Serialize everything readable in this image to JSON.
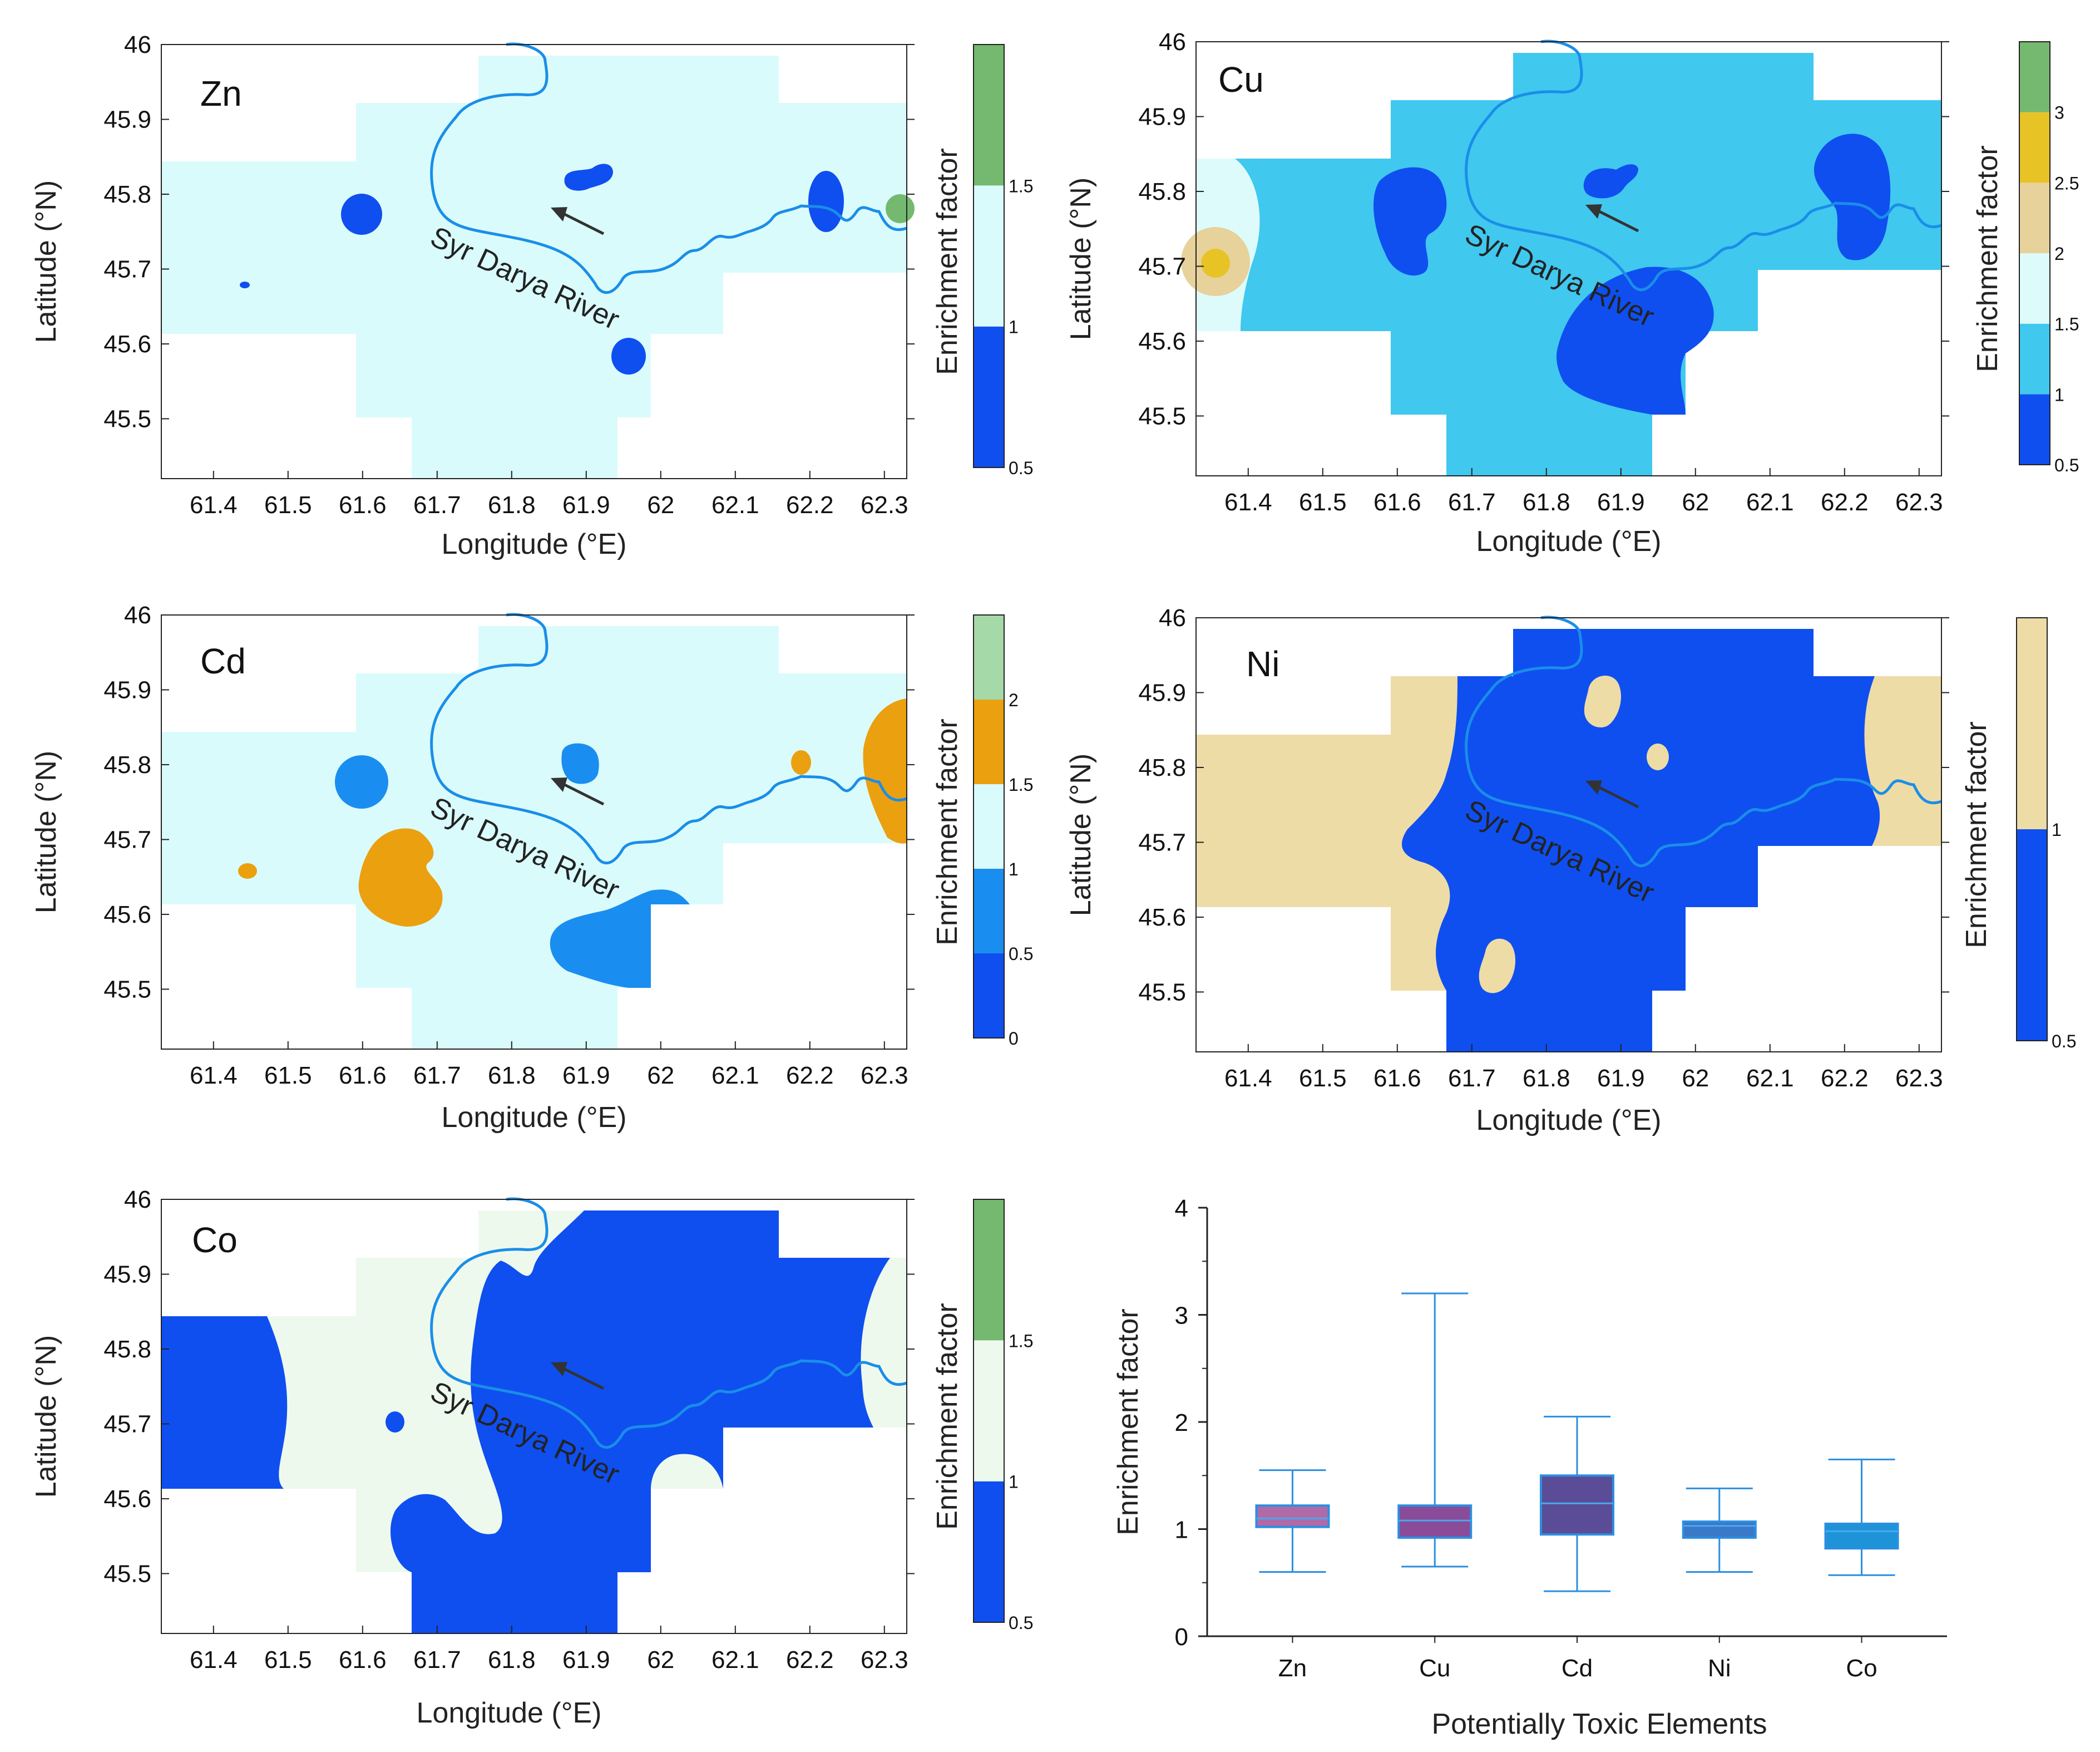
{
  "maps": [
    {
      "element": "Zn",
      "xlabel": "Longitude (°E)",
      "ylabel": "Latitude (°N)",
      "xticks": [
        "61.4",
        "61.5",
        "61.6",
        "61.7",
        "61.8",
        "61.9",
        "62",
        "62.1",
        "62.2",
        "62.3"
      ],
      "yticks": [
        "46",
        "45.9",
        "45.8",
        "45.7",
        "45.6",
        "45.5"
      ],
      "river_label": "Syr Darya River",
      "background_color": "#dafbfb",
      "colorbar": {
        "label": "Enrichment factor",
        "segments": [
          {
            "color": "#0f4ff0",
            "from": 0.5,
            "to": 1
          },
          {
            "color": "#dafbfb",
            "from": 1,
            "to": 1.5
          },
          {
            "color": "#74b96f",
            "from": 1.5,
            "to": 2
          }
        ],
        "ticks": [
          "0.5",
          "1",
          "1.5"
        ]
      }
    },
    {
      "element": "Cu",
      "xlabel": "Longitude (°E)",
      "ylabel": "Latitude (°N)",
      "xticks": [
        "61.4",
        "61.5",
        "61.6",
        "61.7",
        "61.8",
        "61.9",
        "62",
        "62.1",
        "62.2",
        "62.3"
      ],
      "yticks": [
        "46",
        "45.9",
        "45.8",
        "45.7",
        "45.6",
        "45.5"
      ],
      "river_label": "Syr Darya River",
      "background_color": "#40c8ef",
      "colorbar": {
        "label": "Enrichment factor",
        "segments": [
          {
            "color": "#0f4ff0",
            "from": 0.5,
            "to": 1
          },
          {
            "color": "#40c8ef",
            "from": 1,
            "to": 1.5
          },
          {
            "color": "#defbfb",
            "from": 1.5,
            "to": 2
          },
          {
            "color": "#e6d29a",
            "from": 2,
            "to": 2.5
          },
          {
            "color": "#e8c326",
            "from": 2.5,
            "to": 3
          },
          {
            "color": "#74b96f",
            "from": 3,
            "to": 3.5
          }
        ],
        "ticks": [
          "0.5",
          "1",
          "1.5",
          "2",
          "2.5",
          "3"
        ]
      }
    },
    {
      "element": "Cd",
      "xlabel": "Longitude (°E)",
      "ylabel": "Latitude (°N)",
      "xticks": [
        "61.4",
        "61.5",
        "61.6",
        "61.7",
        "61.8",
        "61.9",
        "62",
        "62.1",
        "62.2",
        "62.3"
      ],
      "yticks": [
        "46",
        "45.9",
        "45.8",
        "45.7",
        "45.6",
        "45.5"
      ],
      "river_label": "Syr Darya River",
      "background_color": "#dafbfb",
      "colorbar": {
        "label": "Enrichment factor",
        "segments": [
          {
            "color": "#0f4ff0",
            "from": 0,
            "to": 0.5
          },
          {
            "color": "#1a8ef0",
            "from": 0.5,
            "to": 1
          },
          {
            "color": "#dafbfb",
            "from": 1,
            "to": 1.5
          },
          {
            "color": "#eba010",
            "from": 1.5,
            "to": 2
          },
          {
            "color": "#a6d9a8",
            "from": 2,
            "to": 2.5
          }
        ],
        "ticks": [
          "0",
          "0.5",
          "1",
          "1.5",
          "2"
        ]
      }
    },
    {
      "element": "Ni",
      "xlabel": "Longitude (°E)",
      "ylabel": "Latitude (°N)",
      "xticks": [
        "61.4",
        "61.5",
        "61.6",
        "61.7",
        "61.8",
        "61.9",
        "62",
        "62.1",
        "62.2",
        "62.3"
      ],
      "yticks": [
        "46",
        "45.9",
        "45.8",
        "45.7",
        "45.6",
        "45.5"
      ],
      "river_label": "Syr Darya River",
      "background_color": "#eedca6",
      "colorbar": {
        "label": "Enrichment factor",
        "segments": [
          {
            "color": "#0f4ff0",
            "from": 0.5,
            "to": 1
          },
          {
            "color": "#eedca6",
            "from": 1,
            "to": 1.5
          }
        ],
        "ticks": [
          "0.5",
          "1"
        ]
      }
    },
    {
      "element": "Co",
      "xlabel": "Longitude (°E)",
      "ylabel": "Latitude (°N)",
      "xticks": [
        "61.4",
        "61.5",
        "61.6",
        "61.7",
        "61.8",
        "61.9",
        "62",
        "62.1",
        "62.2",
        "62.3"
      ],
      "yticks": [
        "46",
        "45.9",
        "45.8",
        "45.7",
        "45.6",
        "45.5"
      ],
      "river_label": "Syr Darya River",
      "background_color": "#eef9ee",
      "colorbar": {
        "label": "Enrichment factor",
        "segments": [
          {
            "color": "#0f4ff0",
            "from": 0.5,
            "to": 1
          },
          {
            "color": "#eef9ee",
            "from": 1,
            "to": 1.5
          },
          {
            "color": "#74b96f",
            "from": 1.5,
            "to": 2
          }
        ],
        "ticks": [
          "0.5",
          "1",
          "1.5"
        ]
      }
    }
  ],
  "chart_data": {
    "type": "box",
    "title": "",
    "xlabel": "Potentially Toxic Elements",
    "ylabel": "Enrichment factor",
    "ylim": [
      0,
      4
    ],
    "yticks": [
      "0",
      "1",
      "2",
      "3",
      "4"
    ],
    "categories": [
      "Zn",
      "Cu",
      "Cd",
      "Ni",
      "Co"
    ],
    "boxes": [
      {
        "name": "Zn",
        "min": 0.6,
        "q1": 1.02,
        "median": 1.1,
        "q3": 1.22,
        "max": 1.55,
        "color": "#b06aa8"
      },
      {
        "name": "Cu",
        "min": 0.65,
        "q1": 0.92,
        "median": 1.08,
        "q3": 1.22,
        "max": 3.2,
        "color": "#8a4b98"
      },
      {
        "name": "Cd",
        "min": 0.42,
        "q1": 0.95,
        "median": 1.24,
        "q3": 1.5,
        "max": 2.05,
        "color": "#5b4c98"
      },
      {
        "name": "Ni",
        "min": 0.6,
        "q1": 0.92,
        "median": 1.03,
        "q3": 1.07,
        "max": 1.38,
        "color": "#3a78c8"
      },
      {
        "name": "Co",
        "min": 0.57,
        "q1": 0.82,
        "median": 0.98,
        "q3": 1.05,
        "max": 1.65,
        "color": "#1e93d8"
      }
    ]
  }
}
